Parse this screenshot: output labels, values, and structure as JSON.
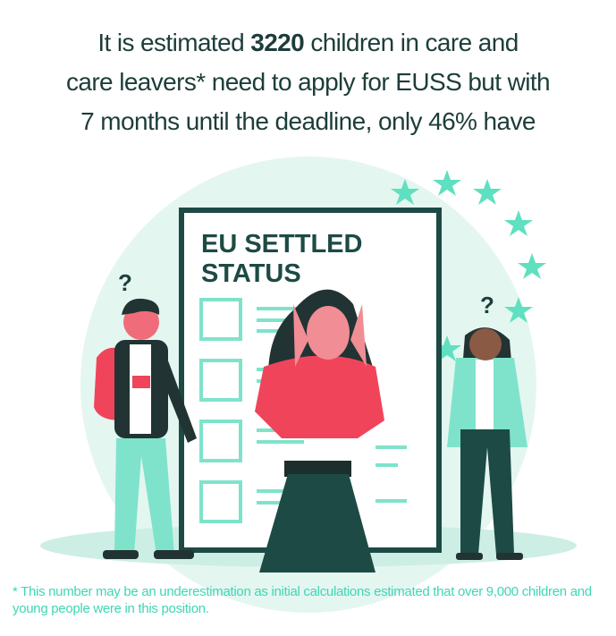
{
  "headline": [
    [
      "It is estimated",
      "3220",
      "children in care and"
    ],
    [
      "care leavers* need to apply for EUSS but with"
    ],
    [
      "7 months until the deadline, only 46% have"
    ]
  ],
  "document": {
    "title": [
      "EU SETTLED",
      "STATUS"
    ]
  },
  "question_marks": [
    "?",
    "?"
  ],
  "footnote": "* This number may be an underestimation as initial calculations estimated that over 9,000 children and young people were in this position."
}
